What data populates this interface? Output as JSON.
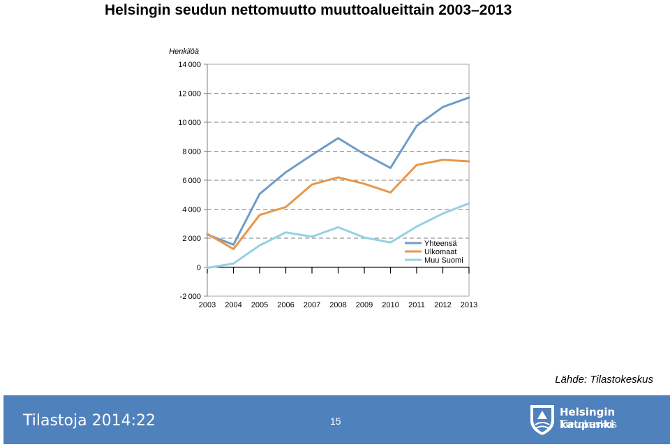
{
  "title": "Helsingin seudun nettomuutto muuttoalueittain 2003–2013",
  "chart_data": {
    "type": "line",
    "ylabel": "Henkilöä",
    "xlabel": "",
    "ylim": [
      -2000,
      14000
    ],
    "yticks": [
      14000,
      12000,
      10000,
      8000,
      6000,
      4000,
      2000,
      0,
      -2000
    ],
    "ytick_labels": [
      "14 000",
      "12 000",
      "10 000",
      "8 000",
      "6 000",
      "4 000",
      "2 000",
      "0",
      "-2 000"
    ],
    "categories": [
      "2003",
      "2004",
      "2005",
      "2006",
      "2007",
      "2008",
      "2009",
      "2010",
      "2011",
      "2012",
      "2013"
    ],
    "grid": "horizontal dashed",
    "legend_position": "inside-bottom-right",
    "series": [
      {
        "name": "Yhteensä",
        "color": "#6f9cc8",
        "values": [
          2250,
          1550,
          5050,
          6550,
          7750,
          8900,
          7800,
          6850,
          9750,
          11050,
          11700
        ]
      },
      {
        "name": "Ulkomaat",
        "color": "#e8974a",
        "values": [
          2300,
          1250,
          3600,
          4150,
          5700,
          6200,
          5750,
          5150,
          7050,
          7400,
          7300
        ]
      },
      {
        "name": "Muu Suomi",
        "color": "#93d2e0",
        "values": [
          -50,
          250,
          1500,
          2400,
          2100,
          2750,
          2050,
          1700,
          2800,
          3700,
          4400
        ]
      }
    ]
  },
  "source": "Lähde: Tilastokeskus",
  "footer": {
    "series_title": "Tilastoja 2014:22",
    "page_number": "15",
    "org_name": "Helsingin kaupunki",
    "org_unit": "Tietokeskus",
    "background_color": "#4f81bd"
  }
}
